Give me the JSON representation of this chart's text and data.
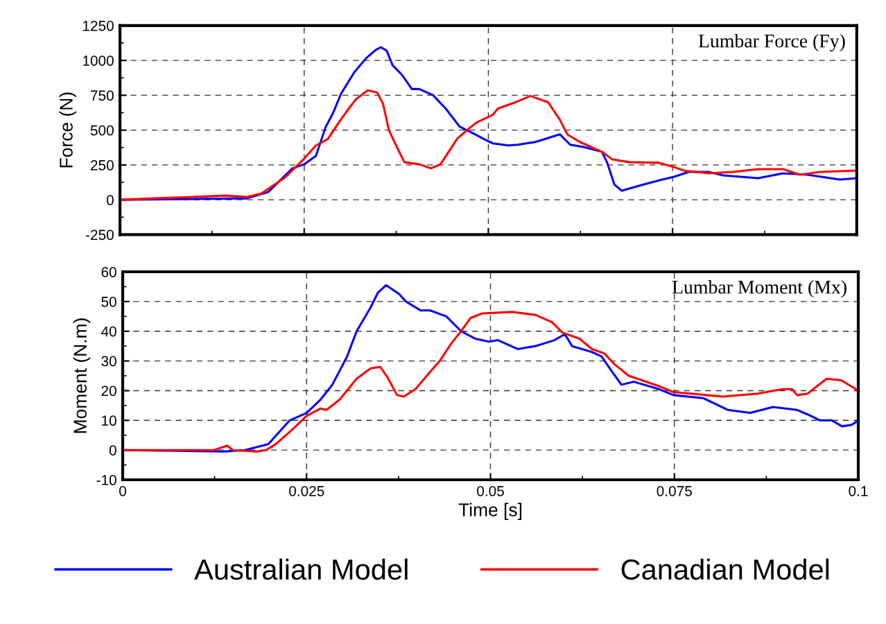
{
  "chart_data": [
    {
      "type": "line",
      "title": "Lumbar Force (Fy)",
      "ylabel": "Force (N)",
      "xlim": [
        0,
        0.1
      ],
      "ylim": [
        -250,
        1250
      ],
      "xticks": [
        0,
        0.025,
        0.05,
        0.075,
        0.1
      ],
      "yticks": [
        -250,
        0,
        250,
        500,
        750,
        1000,
        1250
      ],
      "grid": true,
      "tick_labels": "y",
      "legend": "bottom",
      "line_style": "solid",
      "series": [
        {
          "name": "Australian Model",
          "color": "#0000ff",
          "x": [
            0,
            0.0172,
            0.0201,
            0.0234,
            0.025,
            0.0266,
            0.0279,
            0.0289,
            0.03,
            0.0318,
            0.0334,
            0.0347,
            0.0354,
            0.0362,
            0.037,
            0.0383,
            0.0396,
            0.0406,
            0.0425,
            0.0442,
            0.0461,
            0.048,
            0.0494,
            0.0506,
            0.0527,
            0.054,
            0.0564,
            0.0597,
            0.0611,
            0.0628,
            0.0654,
            0.0661,
            0.0671,
            0.0681,
            0.0711,
            0.0732,
            0.0752,
            0.0772,
            0.0799,
            0.0819,
            0.0866,
            0.09,
            0.0933,
            0.0977,
            0.1
          ],
          "values": [
            0,
            10,
            55,
            225,
            255,
            315,
            520,
            620,
            760,
            915,
            1015,
            1075,
            1095,
            1070,
            965,
            895,
            795,
            795,
            750,
            655,
            525,
            475,
            435,
            405,
            390,
            395,
            415,
            470,
            395,
            380,
            345,
            270,
            110,
            65,
            110,
            140,
            165,
            200,
            200,
            175,
            155,
            190,
            180,
            145,
            155
          ]
        },
        {
          "name": "Canadian Model",
          "color": "#ff0000",
          "x": [
            0,
            0.0143,
            0.0172,
            0.0192,
            0.0224,
            0.025,
            0.0266,
            0.0282,
            0.0299,
            0.0312,
            0.0321,
            0.0336,
            0.0349,
            0.0357,
            0.0365,
            0.0377,
            0.0386,
            0.0406,
            0.0422,
            0.0435,
            0.0458,
            0.0471,
            0.0484,
            0.0506,
            0.0513,
            0.0537,
            0.0557,
            0.0581,
            0.0597,
            0.0607,
            0.0624,
            0.0654,
            0.0668,
            0.0691,
            0.0732,
            0.0752,
            0.0765,
            0.0799,
            0.0832,
            0.0866,
            0.09,
            0.0923,
            0.095,
            0.1
          ],
          "values": [
            0,
            30,
            20,
            45,
            160,
            295,
            390,
            435,
            570,
            665,
            725,
            785,
            770,
            690,
            500,
            365,
            270,
            255,
            225,
            255,
            440,
            500,
            555,
            610,
            655,
            700,
            745,
            700,
            575,
            470,
            415,
            345,
            290,
            270,
            265,
            235,
            210,
            190,
            200,
            220,
            220,
            180,
            200,
            210
          ]
        }
      ]
    },
    {
      "type": "line",
      "title": "Lumbar Moment (Mx)",
      "xlabel": "Time [s]",
      "ylabel": "Moment (N.m)",
      "xlim": [
        0,
        0.1
      ],
      "ylim": [
        -10,
        60
      ],
      "xticks": [
        0,
        0.025,
        0.05,
        0.075,
        0.1
      ],
      "yticks": [
        -10,
        0,
        10,
        20,
        30,
        40,
        50,
        60
      ],
      "grid": true,
      "line_style": "solid",
      "series": [
        {
          "color": "#0000ff",
          "x": [
            0,
            0.0137,
            0.0166,
            0.0198,
            0.0227,
            0.025,
            0.0269,
            0.0285,
            0.0305,
            0.0318,
            0.0337,
            0.0347,
            0.0358,
            0.0376,
            0.0385,
            0.0405,
            0.0418,
            0.044,
            0.046,
            0.0479,
            0.0498,
            0.051,
            0.0537,
            0.0561,
            0.0587,
            0.0601,
            0.0611,
            0.0638,
            0.0651,
            0.0665,
            0.0678,
            0.0695,
            0.0729,
            0.0749,
            0.0789,
            0.0823,
            0.0853,
            0.0884,
            0.0917,
            0.0931,
            0.0948,
            0.0964,
            0.0978,
            0.0991,
            0.1
          ],
          "values": [
            0,
            -0.5,
            0,
            2,
            10,
            12.5,
            17,
            22,
            31.5,
            40,
            48,
            53,
            55.5,
            52.5,
            50,
            47,
            47,
            45,
            40,
            37.5,
            36.5,
            37,
            34,
            35,
            37,
            39,
            35,
            33,
            31.5,
            26.5,
            22,
            23,
            20.5,
            18.5,
            17.5,
            13.5,
            12.5,
            14.5,
            13.5,
            12,
            10,
            10,
            8,
            8.5,
            10
          ]
        },
        {
          "color": "#ff0000",
          "x": [
            0,
            0.0124,
            0.0142,
            0.015,
            0.0182,
            0.0195,
            0.0208,
            0.0231,
            0.025,
            0.0269,
            0.0277,
            0.0295,
            0.0318,
            0.0337,
            0.035,
            0.036,
            0.0373,
            0.0382,
            0.0398,
            0.0415,
            0.0431,
            0.0447,
            0.046,
            0.0473,
            0.0489,
            0.053,
            0.0561,
            0.0584,
            0.0598,
            0.0621,
            0.0638,
            0.0655,
            0.0668,
            0.0688,
            0.0729,
            0.0749,
            0.0816,
            0.0863,
            0.0897,
            0.091,
            0.0917,
            0.0931,
            0.0957,
            0.0977,
            0.1
          ],
          "values": [
            0,
            0,
            1.5,
            0,
            -0.5,
            0,
            2,
            7,
            11.5,
            14,
            13.5,
            17,
            24,
            27.5,
            28,
            24.5,
            18.5,
            18,
            20.5,
            25.5,
            30,
            36,
            40,
            44.5,
            46,
            46.5,
            45.5,
            43,
            39.5,
            37.5,
            34,
            32.5,
            29,
            25,
            21.5,
            19.5,
            18,
            19,
            20.5,
            20.5,
            18.5,
            19,
            24,
            23.5,
            20
          ]
        }
      ]
    }
  ]
}
